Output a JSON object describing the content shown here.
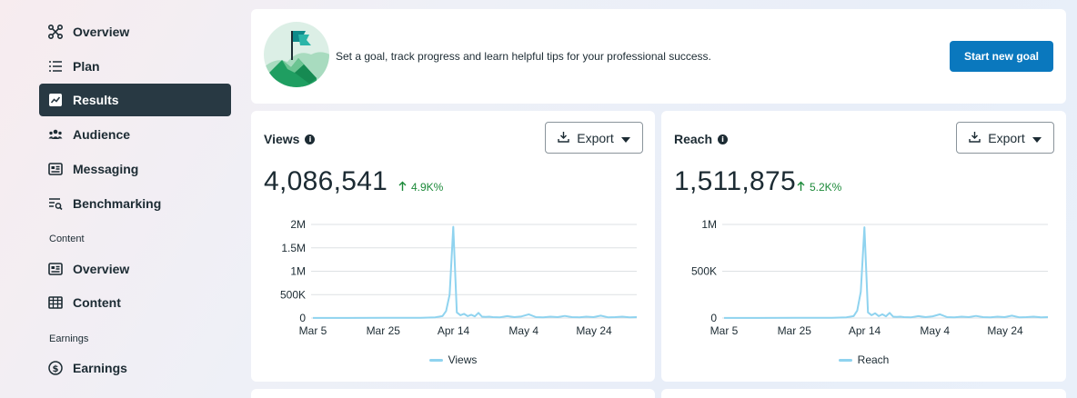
{
  "sidebar": {
    "items": [
      {
        "label": "Overview",
        "icon": "network-icon"
      },
      {
        "label": "Plan",
        "icon": "list-icon"
      },
      {
        "label": "Results",
        "icon": "trend-icon",
        "active": true
      },
      {
        "label": "Audience",
        "icon": "people-icon"
      },
      {
        "label": "Messaging",
        "icon": "message-card-icon"
      },
      {
        "label": "Benchmarking",
        "icon": "search-list-icon"
      }
    ],
    "content_section": "Content",
    "content_items": [
      {
        "label": "Overview",
        "icon": "content-overview-icon"
      },
      {
        "label": "Content",
        "icon": "grid-icon"
      }
    ],
    "earnings_section": "Earnings",
    "earnings_items": [
      {
        "label": "Earnings",
        "icon": "dollar-icon"
      }
    ]
  },
  "goal": {
    "text": "Set a goal, track progress and learn helpful tips for your professional success.",
    "button": "Start new goal"
  },
  "colors": {
    "accent": "#0a78be",
    "active_nav": "#283943",
    "line": "#8fd3ef",
    "positive": "#1d8a3a"
  },
  "views": {
    "title": "Views",
    "export": "Export",
    "value": "4,086,541",
    "change": "4.9K%"
  },
  "reach": {
    "title": "Reach",
    "export": "Export",
    "value": "1,511,875",
    "change": "5.2K%"
  },
  "chart_data": [
    {
      "type": "line",
      "title": "",
      "y_ticks": [
        "0",
        "500K",
        "1M",
        "1.5M",
        "2M"
      ],
      "y_tick_values": [
        0,
        500000,
        1000000,
        1500000,
        2000000
      ],
      "x_ticks": [
        "Mar 5",
        "Mar 25",
        "Apr 14",
        "May 4",
        "May 24"
      ],
      "ylim": [
        0,
        2000000
      ],
      "xlim": [
        0,
        90
      ],
      "grid": true,
      "legend_position": "bottom",
      "series": [
        {
          "name": "Views",
          "x": [
            0,
            10,
            20,
            30,
            34,
            36,
            37,
            38,
            39,
            40,
            41,
            42,
            43,
            44,
            45,
            46,
            47,
            48,
            49,
            50,
            52,
            54,
            56,
            58,
            60,
            62,
            64,
            66,
            68,
            70,
            72,
            74,
            76,
            78,
            80,
            82,
            84,
            86,
            88,
            90
          ],
          "y": [
            2000,
            2000,
            3000,
            6000,
            15000,
            40000,
            150000,
            500000,
            1950000,
            120000,
            60000,
            90000,
            40000,
            70000,
            35000,
            110000,
            30000,
            25000,
            30000,
            20000,
            15000,
            40000,
            20000,
            35000,
            80000,
            20000,
            15000,
            30000,
            20000,
            45000,
            20000,
            15000,
            30000,
            20000,
            50000,
            15000,
            20000,
            30000,
            15000,
            20000
          ]
        }
      ]
    },
    {
      "type": "line",
      "title": "",
      "y_ticks": [
        "0",
        "500K",
        "1M"
      ],
      "y_tick_values": [
        0,
        500000,
        1000000
      ],
      "x_ticks": [
        "Mar 5",
        "Mar 25",
        "Apr 14",
        "May 4",
        "May 24"
      ],
      "ylim": [
        0,
        1000000
      ],
      "xlim": [
        0,
        90
      ],
      "grid": true,
      "legend_position": "bottom",
      "series": [
        {
          "name": "Reach",
          "x": [
            0,
            10,
            20,
            30,
            34,
            36,
            37,
            38,
            39,
            40,
            41,
            42,
            43,
            44,
            45,
            46,
            47,
            48,
            49,
            50,
            52,
            54,
            56,
            58,
            60,
            62,
            64,
            66,
            68,
            70,
            72,
            74,
            76,
            78,
            80,
            82,
            84,
            86,
            88,
            90
          ],
          "y": [
            1000,
            1000,
            1500,
            3000,
            8000,
            20000,
            80000,
            280000,
            970000,
            60000,
            30000,
            50000,
            20000,
            40000,
            18000,
            55000,
            15000,
            12000,
            15000,
            10000,
            8000,
            20000,
            10000,
            18000,
            40000,
            10000,
            8000,
            15000,
            10000,
            22000,
            10000,
            8000,
            15000,
            10000,
            25000,
            8000,
            10000,
            15000,
            8000,
            10000
          ]
        }
      ]
    }
  ]
}
